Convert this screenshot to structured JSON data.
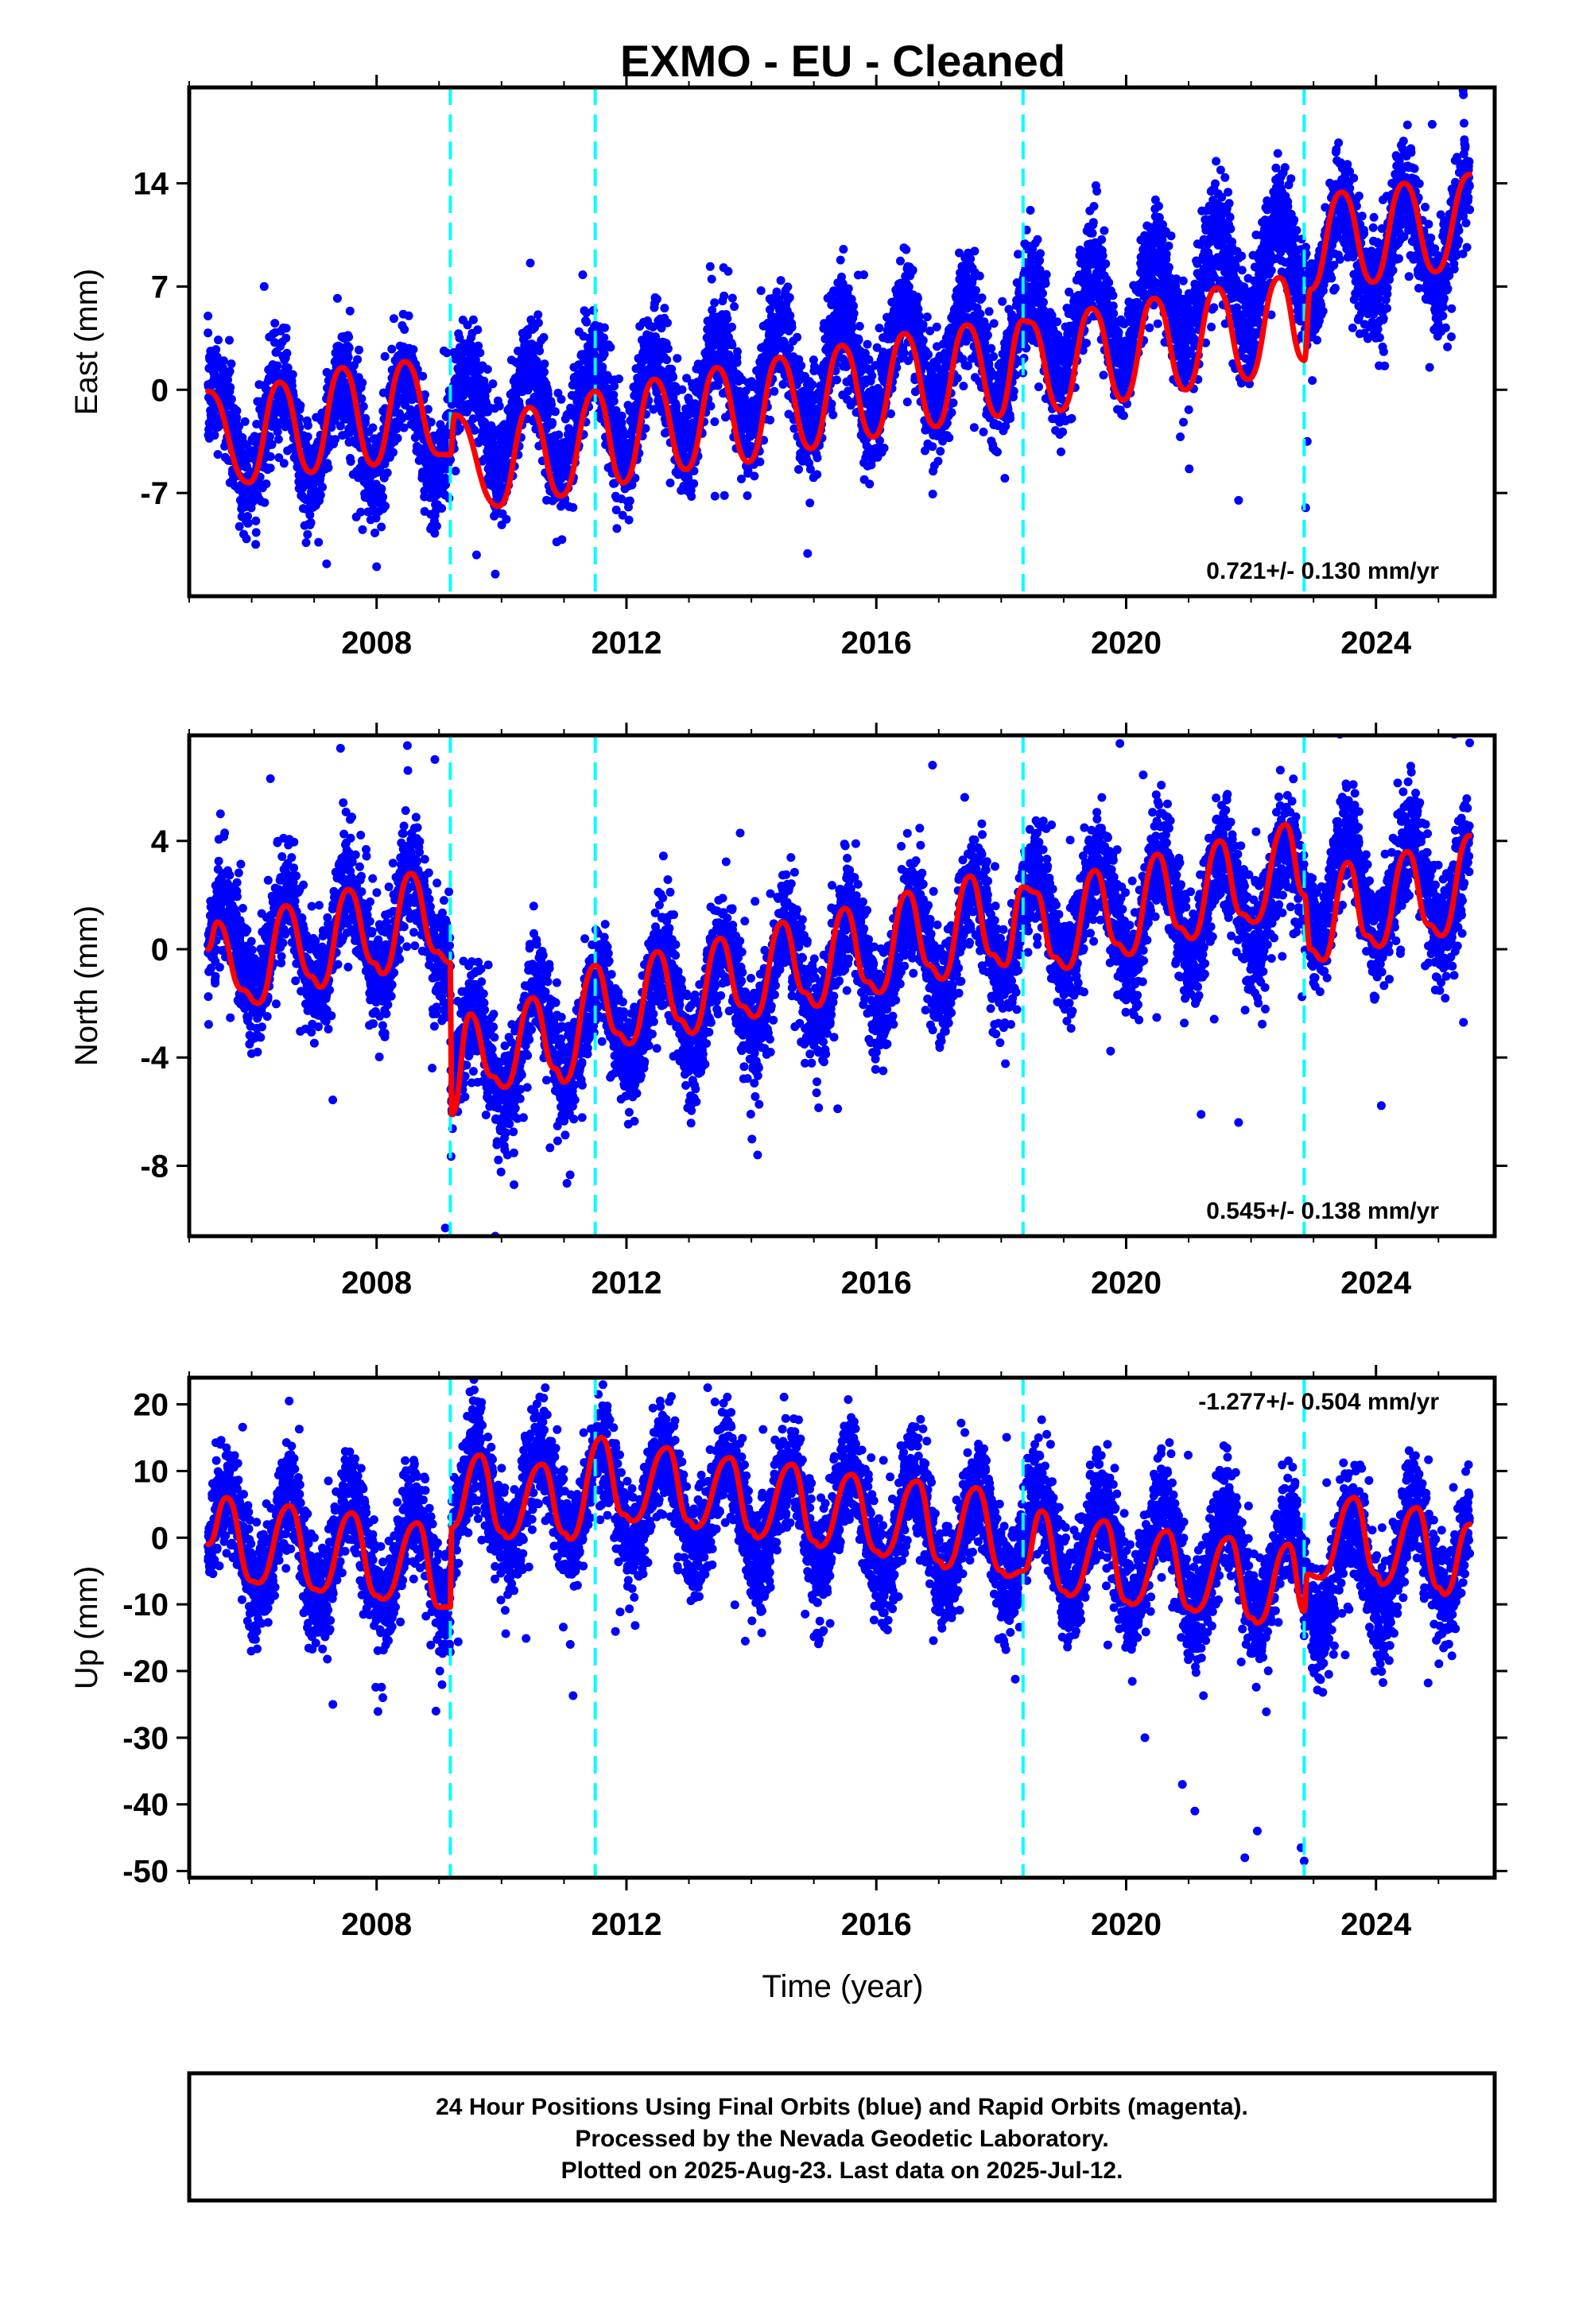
{
  "title": "EXMO  - EU - Cleaned",
  "x_axis": {
    "label": "Time (year)",
    "range": [
      2005.0,
      2025.9
    ],
    "ticks": [
      2008,
      2012,
      2016,
      2020,
      2024
    ],
    "tick_labels": [
      "2008",
      "2012",
      "2016",
      "2020",
      "2024"
    ]
  },
  "colors": {
    "points": "#0000ff",
    "model": "#ff0000",
    "event_lines": "#00ffff",
    "frame": "#000000"
  },
  "event_lines": [
    2009.18,
    2011.5,
    2018.35,
    2022.85
  ],
  "footer": {
    "line1": "24 Hour Positions Using Final Orbits (blue) and Rapid Orbits (magenta).",
    "line2": "Processed by the Nevada Geodetic Laboratory.",
    "line3": "Plotted on 2025-Aug-23. Last data on 2025-Jul-12."
  },
  "chart_data": [
    {
      "type": "scatter",
      "component": "East",
      "ylabel": "East (mm)",
      "ylim": [
        -14,
        20.5
      ],
      "yticks": [
        14,
        7,
        0,
        -7
      ],
      "ytick_labels": [
        "14",
        "7",
        "0",
        "-7"
      ],
      "rate_label": "0.721+/- 0.130 mm/yr",
      "rate_position": "bottom-right",
      "x_range": [
        2005.3,
        2025.5
      ],
      "trend": {
        "segments": [
          [
            2005.3,
            -3.2
          ],
          [
            2009.18,
            -2.1
          ],
          [
            2011.5,
            -1.5
          ],
          [
            2018.35,
            3.3
          ],
          [
            2022.85,
            8.9
          ],
          [
            2025.5,
            10.5
          ]
        ]
      },
      "seasonal_amplitude": 3.5,
      "seasonal_phase_peak": 0.45,
      "scatter_sd": 1.8,
      "outliers": [
        [
          2005.3,
          5.0
        ],
        [
          2006.2,
          7.0
        ],
        [
          2007.2,
          -11.8
        ],
        [
          2008.0,
          -12.0
        ],
        [
          2009.6,
          -11.2
        ],
        [
          2009.9,
          -12.5
        ],
        [
          2011.3,
          7.8
        ],
        [
          2014.9,
          -11.1
        ],
        [
          2015.8,
          7.8
        ],
        [
          2021.8,
          -7.5
        ],
        [
          2022.9,
          -3.5
        ],
        [
          2024.9,
          18.0
        ],
        [
          2025.4,
          20.0
        ]
      ],
      "model_points": [
        [
          2005.3,
          -0.1
        ],
        [
          2005.95,
          -6.3
        ],
        [
          2006.45,
          0.5
        ],
        [
          2006.95,
          -5.6
        ],
        [
          2007.45,
          1.5
        ],
        [
          2007.95,
          -5.1
        ],
        [
          2008.45,
          1.9
        ],
        [
          2009.0,
          -4.4
        ],
        [
          2009.18,
          -4.4
        ],
        [
          2009.25,
          -1.7
        ],
        [
          2009.95,
          -7.9
        ],
        [
          2010.45,
          -1.2
        ],
        [
          2010.95,
          -7.2
        ],
        [
          2011.5,
          -0.1
        ],
        [
          2011.95,
          -6.3
        ],
        [
          2012.45,
          0.7
        ],
        [
          2012.95,
          -5.4
        ],
        [
          2013.45,
          1.5
        ],
        [
          2013.95,
          -4.9
        ],
        [
          2014.45,
          2.2
        ],
        [
          2014.95,
          -4.0
        ],
        [
          2015.45,
          3.0
        ],
        [
          2015.95,
          -3.2
        ],
        [
          2016.45,
          3.8
        ],
        [
          2016.95,
          -2.5
        ],
        [
          2017.45,
          4.4
        ],
        [
          2017.95,
          -1.8
        ],
        [
          2018.35,
          4.7
        ],
        [
          2018.45,
          4.6
        ],
        [
          2018.95,
          -1.4
        ],
        [
          2019.45,
          5.5
        ],
        [
          2019.95,
          -0.7
        ],
        [
          2020.45,
          6.2
        ],
        [
          2020.95,
          0.0
        ],
        [
          2021.45,
          6.9
        ],
        [
          2021.95,
          0.7
        ],
        [
          2022.45,
          7.6
        ],
        [
          2022.85,
          2.0
        ],
        [
          2022.95,
          6.8
        ],
        [
          2023.45,
          13.4
        ],
        [
          2023.95,
          7.3
        ],
        [
          2024.45,
          14.0
        ],
        [
          2024.95,
          8.0
        ],
        [
          2025.5,
          14.6
        ]
      ]
    },
    {
      "type": "scatter",
      "component": "North",
      "ylabel": "North (mm)",
      "ylim": [
        -10.6,
        7.9
      ],
      "yticks": [
        4,
        0,
        -4,
        -8
      ],
      "ytick_labels": [
        "4",
        "0",
        "-4",
        "-8"
      ],
      "rate_label": "0.545+/- 0.138 mm/yr",
      "rate_position": "bottom-right",
      "x_range": [
        2005.3,
        2025.5
      ],
      "trend": {
        "segments": [
          [
            2005.3,
            -0.2
          ],
          [
            2009.18,
            1.2
          ],
          [
            2009.19,
            -4.4
          ],
          [
            2011.5,
            -2.7
          ],
          [
            2018.35,
            0.9
          ],
          [
            2022.85,
            2.2
          ],
          [
            2025.5,
            2.4
          ]
        ]
      },
      "seasonal_amplitude": 1.9,
      "seasonal_phase_peak": 0.55,
      "scatter_sd": 1.0,
      "outliers": [
        [
          2005.5,
          5.0
        ],
        [
          2006.3,
          6.3
        ],
        [
          2008.5,
          6.6
        ],
        [
          2009.1,
          -10.3
        ],
        [
          2009.9,
          -10.6
        ],
        [
          2010.2,
          -8.7
        ],
        [
          2014.1,
          -7.6
        ],
        [
          2016.9,
          6.8
        ],
        [
          2019.9,
          7.6
        ],
        [
          2021.2,
          -6.1
        ],
        [
          2021.8,
          -6.4
        ],
        [
          2025.4,
          -2.7
        ]
      ],
      "model_points": [
        [
          2005.3,
          0.0
        ],
        [
          2005.45,
          1.0
        ],
        [
          2005.85,
          -1.5
        ],
        [
          2006.1,
          -2.0
        ],
        [
          2006.55,
          1.6
        ],
        [
          2006.95,
          -1.0
        ],
        [
          2007.1,
          -1.4
        ],
        [
          2007.55,
          2.2
        ],
        [
          2007.95,
          -0.5
        ],
        [
          2008.1,
          -0.9
        ],
        [
          2008.55,
          2.8
        ],
        [
          2008.95,
          -0.1
        ],
        [
          2009.18,
          -0.5
        ],
        [
          2009.2,
          -6.1
        ],
        [
          2009.5,
          -2.4
        ],
        [
          2009.85,
          -4.7
        ],
        [
          2010.05,
          -5.1
        ],
        [
          2010.5,
          -1.8
        ],
        [
          2010.85,
          -4.4
        ],
        [
          2011.0,
          -4.9
        ],
        [
          2011.5,
          -0.6
        ],
        [
          2011.85,
          -3.1
        ],
        [
          2012.05,
          -3.5
        ],
        [
          2012.5,
          -0.1
        ],
        [
          2012.85,
          -2.6
        ],
        [
          2013.05,
          -3.1
        ],
        [
          2013.5,
          0.4
        ],
        [
          2013.85,
          -2.1
        ],
        [
          2014.05,
          -2.5
        ],
        [
          2014.5,
          1.0
        ],
        [
          2014.85,
          -1.6
        ],
        [
          2015.05,
          -2.1
        ],
        [
          2015.5,
          1.5
        ],
        [
          2015.85,
          -1.2
        ],
        [
          2016.05,
          -1.6
        ],
        [
          2016.5,
          2.1
        ],
        [
          2016.85,
          -0.6
        ],
        [
          2017.05,
          -1.1
        ],
        [
          2017.5,
          2.7
        ],
        [
          2017.85,
          -0.2
        ],
        [
          2018.05,
          -0.6
        ],
        [
          2018.35,
          2.3
        ],
        [
          2018.55,
          2.1
        ],
        [
          2018.85,
          -0.3
        ],
        [
          2019.05,
          -0.7
        ],
        [
          2019.5,
          2.9
        ],
        [
          2019.85,
          0.2
        ],
        [
          2020.05,
          -0.2
        ],
        [
          2020.5,
          3.5
        ],
        [
          2020.85,
          0.8
        ],
        [
          2021.05,
          0.4
        ],
        [
          2021.5,
          4.0
        ],
        [
          2021.85,
          1.3
        ],
        [
          2022.05,
          1.0
        ],
        [
          2022.55,
          4.6
        ],
        [
          2022.85,
          2.0
        ],
        [
          2022.95,
          0.0
        ],
        [
          2023.15,
          -0.4
        ],
        [
          2023.55,
          3.2
        ],
        [
          2023.85,
          0.5
        ],
        [
          2024.05,
          0.1
        ],
        [
          2024.5,
          3.6
        ],
        [
          2024.85,
          0.9
        ],
        [
          2025.05,
          0.5
        ],
        [
          2025.5,
          4.2
        ]
      ]
    },
    {
      "type": "scatter",
      "component": "Up",
      "ylabel": "Up (mm)",
      "ylim": [
        -51,
        24
      ],
      "yticks": [
        20,
        10,
        0,
        -10,
        -20,
        -30,
        -40,
        -50
      ],
      "ytick_labels": [
        "20",
        "10",
        "0",
        "-10",
        "-20",
        "-30",
        "-40",
        "-50"
      ],
      "rate_label": "-1.277+/- 0.504 mm/yr",
      "rate_position": "top-right",
      "x_range": [
        2005.3,
        2025.5
      ],
      "trend": {
        "segments": [
          [
            2005.3,
            -0.2
          ],
          [
            2009.18,
            -3.5
          ],
          [
            2009.19,
            5.0
          ],
          [
            2011.5,
            6.8
          ],
          [
            2018.35,
            -0.5
          ],
          [
            2022.85,
            -5.7
          ],
          [
            2025.5,
            -1.5
          ]
        ]
      },
      "seasonal_amplitude": 7.5,
      "seasonal_phase_peak": 0.6,
      "scatter_sd": 4.0,
      "outliers": [
        [
          2005.5,
          14.0
        ],
        [
          2006.6,
          20.5
        ],
        [
          2007.3,
          -25.0
        ],
        [
          2008.1,
          -24.0
        ],
        [
          2008.95,
          -26.0
        ],
        [
          2010.7,
          22.5
        ],
        [
          2011.1,
          -16.0
        ],
        [
          2011.55,
          21.5
        ],
        [
          2013.3,
          22.5
        ],
        [
          2020.3,
          -30.0
        ],
        [
          2020.9,
          -37.0
        ],
        [
          2021.1,
          -41.0
        ],
        [
          2021.9,
          -48.0
        ],
        [
          2022.1,
          -44.0
        ],
        [
          2022.8,
          -46.5
        ],
        [
          2022.85,
          -48.5
        ]
      ],
      "model_points": [
        [
          2005.3,
          -1.0
        ],
        [
          2005.6,
          6.0
        ],
        [
          2006.0,
          -6.5
        ],
        [
          2006.1,
          -6.8
        ],
        [
          2006.6,
          4.8
        ],
        [
          2007.0,
          -7.7
        ],
        [
          2007.1,
          -8.0
        ],
        [
          2007.6,
          3.7
        ],
        [
          2008.0,
          -8.7
        ],
        [
          2008.1,
          -9.2
        ],
        [
          2008.65,
          2.2
        ],
        [
          2009.0,
          -10.4
        ],
        [
          2009.18,
          -10.4
        ],
        [
          2009.2,
          1.5
        ],
        [
          2009.65,
          12.4
        ],
        [
          2010.0,
          0.9
        ],
        [
          2010.1,
          0.0
        ],
        [
          2010.65,
          11.0
        ],
        [
          2011.0,
          0.7
        ],
        [
          2011.1,
          -0.2
        ],
        [
          2011.6,
          15.0
        ],
        [
          2011.95,
          3.5
        ],
        [
          2012.1,
          2.5
        ],
        [
          2012.65,
          13.5
        ],
        [
          2013.0,
          2.5
        ],
        [
          2013.1,
          1.5
        ],
        [
          2013.65,
          12.0
        ],
        [
          2014.0,
          1.0
        ],
        [
          2014.1,
          0.0
        ],
        [
          2014.65,
          11.0
        ],
        [
          2015.0,
          -0.5
        ],
        [
          2015.1,
          -1.3
        ],
        [
          2015.6,
          9.5
        ],
        [
          2016.0,
          -2.0
        ],
        [
          2016.1,
          -2.7
        ],
        [
          2016.65,
          8.5
        ],
        [
          2017.0,
          -3.5
        ],
        [
          2017.1,
          -4.5
        ],
        [
          2017.6,
          7.5
        ],
        [
          2018.0,
          -5.0
        ],
        [
          2018.1,
          -5.8
        ],
        [
          2018.35,
          -5.0
        ],
        [
          2018.65,
          4.0
        ],
        [
          2019.0,
          -8.0
        ],
        [
          2019.1,
          -8.7
        ],
        [
          2019.65,
          2.5
        ],
        [
          2020.0,
          -9.5
        ],
        [
          2020.1,
          -10.0
        ],
        [
          2020.65,
          1.0
        ],
        [
          2021.0,
          -10.5
        ],
        [
          2021.1,
          -11.0
        ],
        [
          2021.65,
          0.0
        ],
        [
          2022.0,
          -12.0
        ],
        [
          2022.1,
          -12.8
        ],
        [
          2022.6,
          -1.0
        ],
        [
          2022.85,
          -11.0
        ],
        [
          2022.9,
          -5.5
        ],
        [
          2023.1,
          -6.0
        ],
        [
          2023.65,
          6.0
        ],
        [
          2024.0,
          -5.5
        ],
        [
          2024.1,
          -7.0
        ],
        [
          2024.65,
          4.5
        ],
        [
          2025.0,
          -7.5
        ],
        [
          2025.1,
          -8.5
        ],
        [
          2025.5,
          2.0
        ]
      ]
    }
  ]
}
